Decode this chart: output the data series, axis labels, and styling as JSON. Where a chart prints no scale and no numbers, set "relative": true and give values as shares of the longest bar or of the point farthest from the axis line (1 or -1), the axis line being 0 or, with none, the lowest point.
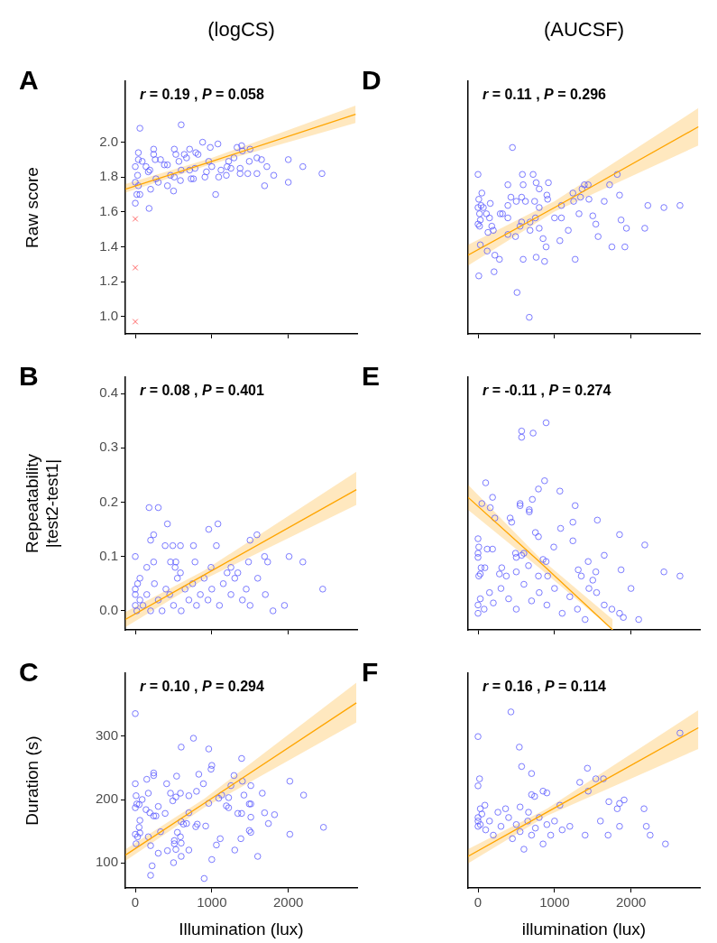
{
  "chart_data": [
    {
      "type": "scatter",
      "title": "A",
      "subtitle": "(logCS)",
      "ylabel": "Raw score",
      "annotations": [
        "r = 0.19 , P = 0.058"
      ],
      "xlim": [
        -130,
        2900
      ],
      "xticks": [
        0,
        1000,
        2000
      ],
      "ylim": [
        0.9,
        2.35
      ],
      "yticks": [
        {
          "value": 1,
          "label": "1.0"
        },
        1.2,
        1.4,
        1.6,
        1.8,
        {
          "value": 2,
          "label": "2.0"
        }
      ],
      "tick_labels": "y",
      "marker": "circle",
      "series": [
        {
          "color": "#5a5aff",
          "x": [
            60,
            600,
            0,
            180,
            40,
            40,
            0,
            30,
            0,
            40,
            20,
            60,
            90,
            140,
            170,
            190,
            200,
            240,
            240,
            260,
            270,
            300,
            330,
            380,
            420,
            420,
            460,
            500,
            510,
            510,
            530,
            570,
            590,
            600,
            640,
            670,
            710,
            710,
            730,
            760,
            790,
            820,
            780,
            880,
            910,
            930,
            960,
            980,
            1000,
            1050,
            1080,
            1090,
            1120,
            1190,
            1200,
            1220,
            1250,
            1290,
            1330,
            1370,
            1370,
            1390,
            1400,
            1470,
            1490,
            1500,
            1590,
            1590,
            1650,
            1690,
            1720,
            1810,
            2000,
            2000,
            2190,
            2440
          ],
          "values": [
            2.08,
            2.1,
            1.65,
            1.62,
            1.94,
            1.9,
            1.86,
            1.81,
            1.77,
            1.75,
            1.7,
            1.7,
            1.89,
            1.86,
            1.83,
            1.84,
            1.73,
            1.96,
            1.93,
            1.9,
            1.79,
            1.77,
            1.9,
            1.87,
            1.87,
            1.75,
            1.81,
            1.72,
            1.96,
            1.8,
            1.93,
            1.89,
            1.78,
            1.84,
            1.93,
            1.91,
            1.96,
            1.84,
            1.79,
            1.79,
            1.94,
            1.93,
            1.85,
            2.0,
            1.8,
            1.83,
            1.89,
            1.97,
            1.86,
            1.7,
            1.99,
            1.8,
            1.84,
            1.81,
            1.86,
            1.89,
            1.85,
            1.91,
            1.97,
            1.85,
            1.82,
            1.98,
            1.95,
            1.82,
            1.89,
            1.96,
            1.91,
            1.82,
            1.9,
            1.75,
            1.86,
            1.81,
            1.9,
            1.77,
            1.86,
            1.82
          ]
        },
        {
          "color": "#ff4040",
          "marker": "cross",
          "x": [
            0,
            0,
            0
          ],
          "values": [
            1.56,
            1.28,
            0.97
          ]
        },
        {
          "type": "line",
          "marker": "none",
          "color": "#ffa500",
          "x": [
            -130,
            1000,
            2880
          ],
          "values": [
            1.73,
            1.89,
            2.16
          ],
          "lower": [
            1.71,
            1.875,
            2.11
          ],
          "upper": [
            1.76,
            1.91,
            2.21
          ]
        }
      ]
    },
    {
      "type": "scatter",
      "title": "D",
      "subtitle": "(AUCSF)",
      "relative": true,
      "annotations": [
        "r = 0.11 , P = 0.296"
      ],
      "xlim": [
        -130,
        2900
      ],
      "xticks": [
        0,
        1000,
        2000
      ],
      "tick_labels": false,
      "marker": "circle",
      "series": [
        {
          "color": "#5a5aff",
          "x": [
            450,
            0,
            10,
            0,
            50,
            40,
            70,
            20,
            30,
            0,
            20,
            110,
            160,
            150,
            180,
            130,
            200,
            30,
            120,
            220,
            280,
            210,
            10,
            290,
            320,
            390,
            390,
            390,
            390,
            430,
            490,
            500,
            510,
            550,
            570,
            580,
            590,
            620,
            570,
            590,
            680,
            680,
            670,
            720,
            760,
            800,
            740,
            750,
            800,
            800,
            850,
            900,
            920,
            910,
            890,
            870,
            760,
            1000,
            1090,
            1090,
            1070,
            1180,
            1240,
            1250,
            1320,
            1340,
            1360,
            1390,
            1440,
            1450,
            1500,
            1540,
            1570,
            1270,
            1650,
            1720,
            1820,
            1850,
            1870,
            1940,
            1750,
            1920,
            2180,
            2220,
            2430,
            2640
          ],
          "values": [
            0.9,
            0.77,
            0.65,
            0.61,
            0.68,
            0.62,
            0.61,
            0.58,
            0.55,
            0.53,
            0.52,
            0.58,
            0.63,
            0.56,
            0.52,
            0.49,
            0.5,
            0.43,
            0.4,
            0.38,
            0.36,
            0.3,
            0.28,
            0.58,
            0.58,
            0.72,
            0.62,
            0.56,
            0.48,
            0.66,
            0.47,
            0.64,
            0.2,
            0.52,
            0.66,
            0.77,
            0.72,
            0.64,
            0.54,
            0.36,
            0.54,
            0.5,
            0.08,
            0.77,
            0.73,
            0.7,
            0.64,
            0.56,
            0.61,
            0.51,
            0.46,
            0.67,
            0.73,
            0.65,
            0.42,
            0.35,
            0.37,
            0.56,
            0.62,
            0.56,
            0.45,
            0.5,
            0.68,
            0.64,
            0.58,
            0.66,
            0.7,
            0.72,
            0.72,
            0.65,
            0.57,
            0.53,
            0.47,
            0.36,
            0.64,
            0.72,
            0.77,
            0.67,
            0.55,
            0.51,
            0.42,
            0.42,
            0.51,
            0.62,
            0.61,
            0.62
          ]
        },
        {
          "type": "line",
          "marker": "none",
          "color": "#ffa500",
          "x": [
            -130,
            1000,
            2880
          ],
          "values": [
            0.38,
            0.61,
            1.0
          ],
          "lower": [
            0.33,
            0.59,
            0.91
          ],
          "upper": [
            0.43,
            0.64,
            1.09
          ]
        }
      ]
    },
    {
      "type": "scatter",
      "title": "B",
      "ylabel": "Repeatability |test2-test1|",
      "annotations": [
        "r = 0.08 , P = 0.401"
      ],
      "xlim": [
        -130,
        2900
      ],
      "xticks": [
        0,
        1000,
        2000
      ],
      "ylim": [
        -0.035,
        0.43
      ],
      "yticks": [
        {
          "value": 0,
          "label": "0.0"
        },
        0.1,
        0.2,
        0.3,
        0.4
      ],
      "tick_labels": "y",
      "marker": "circle",
      "series": [
        {
          "color": "#5a5aff",
          "x": [
            180,
            300,
            420,
            240,
            200,
            960,
            1080,
            1590,
            1500,
            390,
            490,
            590,
            760,
            1060,
            0,
            240,
            150,
            460,
            530,
            520,
            780,
            990,
            1250,
            1480,
            1690,
            1730,
            2010,
            2190,
            590,
            1200,
            1340,
            60,
            0,
            0,
            0,
            20,
            30,
            60,
            100,
            150,
            200,
            250,
            300,
            350,
            400,
            450,
            500,
            550,
            600,
            650,
            700,
            750,
            800,
            850,
            900,
            950,
            1000,
            1100,
            1150,
            1250,
            1300,
            1400,
            1450,
            1500,
            1600,
            1700,
            1800,
            1950,
            2450
          ],
          "values": [
            0.19,
            0.19,
            0.16,
            0.14,
            0.13,
            0.15,
            0.16,
            0.14,
            0.13,
            0.12,
            0.12,
            0.12,
            0.12,
            0.12,
            0.1,
            0.09,
            0.08,
            0.09,
            0.09,
            0.08,
            0.09,
            0.08,
            0.08,
            0.09,
            0.1,
            0.09,
            0.1,
            0.09,
            0.07,
            0.07,
            0.07,
            0.06,
            0.01,
            0.03,
            0.04,
            0.0,
            0.05,
            0.02,
            0.01,
            0.03,
            0.0,
            0.05,
            0.02,
            0.0,
            0.04,
            0.03,
            0.01,
            0.06,
            0.0,
            0.04,
            0.02,
            0.05,
            0.01,
            0.03,
            0.06,
            0.02,
            0.04,
            0.01,
            0.05,
            0.03,
            0.06,
            0.02,
            0.04,
            0.01,
            0.06,
            0.03,
            0.0,
            0.01,
            0.04
          ]
        },
        {
          "type": "line",
          "marker": "none",
          "color": "#ffa500",
          "x": [
            -130,
            900,
            2890
          ],
          "values": [
            -0.016,
            0.066,
            0.223
          ],
          "lower": [
            -0.03,
            0.058,
            0.195
          ],
          "upper": [
            -0.002,
            0.074,
            0.256
          ]
        }
      ]
    },
    {
      "type": "scatter",
      "title": "E",
      "relative": true,
      "annotations": [
        "r = -0.11 , P = 0.274"
      ],
      "xlim": [
        -130,
        2900
      ],
      "xticks": [
        0,
        1000,
        2000
      ],
      "tick_labels": false,
      "marker": "circle",
      "series": [
        {
          "color": "#5a5aff",
          "x": [
            890,
            570,
            570,
            720,
            100,
            870,
            790,
            1070,
            190,
            50,
            160,
            550,
            550,
            710,
            670,
            670,
            1270,
            220,
            420,
            440,
            1560,
            1240,
            1080,
            750,
            790,
            1240,
            1850,
            2180,
            990,
            0,
            10,
            0,
            0,
            120,
            190,
            490,
            500,
            570,
            600,
            1650,
            850,
            890,
            1440,
            660,
            40,
            90,
            310,
            280,
            30,
            10,
            370,
            500,
            1310,
            1540,
            1870,
            2430,
            2640,
            790,
            910,
            1350,
            1500,
            0,
            0,
            30,
            80,
            150,
            200,
            300,
            400,
            500,
            600,
            700,
            800,
            900,
            1000,
            1100,
            1200,
            1300,
            1400,
            1450,
            1550,
            1650,
            1750,
            1850,
            2000,
            2100,
            1900
          ],
          "values": [
            1.0,
            0.96,
            0.93,
            0.95,
            0.71,
            0.72,
            0.68,
            0.67,
            0.64,
            0.61,
            0.59,
            0.61,
            0.6,
            0.63,
            0.58,
            0.57,
            0.6,
            0.54,
            0.54,
            0.52,
            0.53,
            0.52,
            0.49,
            0.47,
            0.45,
            0.43,
            0.46,
            0.41,
            0.4,
            0.44,
            0.4,
            0.37,
            0.35,
            0.39,
            0.39,
            0.37,
            0.35,
            0.36,
            0.37,
            0.36,
            0.34,
            0.33,
            0.33,
            0.31,
            0.3,
            0.3,
            0.3,
            0.27,
            0.27,
            0.26,
            0.26,
            0.28,
            0.29,
            0.28,
            0.29,
            0.28,
            0.26,
            0.26,
            0.26,
            0.26,
            0.24,
            0.12,
            0.08,
            0.15,
            0.1,
            0.18,
            0.13,
            0.2,
            0.15,
            0.1,
            0.22,
            0.14,
            0.18,
            0.12,
            0.2,
            0.08,
            0.16,
            0.1,
            0.05,
            0.2,
            0.18,
            0.12,
            0.1,
            0.08,
            0.2,
            0.05,
            0.06
          ]
        },
        {
          "type": "line",
          "marker": "none",
          "color": "#ffa500",
          "x": [
            -130,
            800,
            1760
          ],
          "values": [
            0.64,
            0.33,
            0
          ],
          "lower": [
            0.58,
            0.3,
            0
          ],
          "upper": [
            0.7,
            0.35,
            0.05
          ]
        }
      ]
    },
    {
      "type": "scatter",
      "title": "C",
      "ylabel": "Duration (s)",
      "xlabel": "Illumination (lux)",
      "annotations": [
        "r = 0.10 , P = 0.294"
      ],
      "xlim": [
        -130,
        2900
      ],
      "xticks": [
        0,
        1000,
        2000
      ],
      "ylim": [
        60,
        400
      ],
      "yticks": [
        100,
        200,
        300
      ],
      "marker": "circle",
      "series": [
        {
          "color": "#5a5aff",
          "x": [
            0,
            760,
            600,
            960,
            1390,
            1000,
            990,
            240,
            240,
            150,
            540,
            830,
            0,
            410,
            890,
            1290,
            1250,
            1400,
            1510,
            2020,
            10,
            170,
            460,
            590,
            700,
            800,
            1130,
            1220,
            1420,
            1660,
            2200,
            20,
            50,
            0,
            90,
            530,
            490,
            960,
            1090,
            1190,
            1220,
            1490,
            1510,
            300,
            140,
            190,
            240,
            270,
            390,
            1340,
            1390,
            1510,
            1690,
            1820,
            60,
            700,
            600,
            630,
            670,
            1740,
            50,
            60,
            810,
            790,
            920,
            2460,
            0,
            30,
            170,
            330,
            550,
            1490,
            1510,
            2020,
            1380,
            1110,
            200,
            510,
            590,
            510,
            600,
            10,
            1060,
            420,
            530,
            900,
            200,
            220,
            500,
            600,
            700,
            1000,
            1600,
            1300,
            300
          ],
          "values": [
            336,
            297,
            283,
            280,
            265,
            254,
            248,
            242,
            238,
            232,
            237,
            240,
            225,
            225,
            225,
            238,
            222,
            229,
            222,
            229,
            206,
            210,
            210,
            210,
            206,
            213,
            207,
            203,
            207,
            210,
            207,
            193,
            192,
            187,
            200,
            204,
            198,
            194,
            202,
            190,
            187,
            193,
            193,
            189,
            184,
            179,
            174,
            174,
            178,
            178,
            178,
            172,
            179,
            176,
            167,
            179,
            165,
            161,
            162,
            162,
            156,
            147,
            161,
            157,
            158,
            156,
            145,
            141,
            141,
            149,
            148,
            151,
            148,
            145,
            138,
            138,
            127,
            135,
            141,
            130,
            131,
            130,
            128,
            119,
            121,
            75,
            80,
            95,
            100,
            110,
            120,
            105,
            110,
            120,
            115
          ]
        },
        {
          "type": "line",
          "marker": "none",
          "color": "#ffa500",
          "x": [
            -130,
            900,
            2890
          ],
          "values": [
            112,
            194,
            353
          ],
          "lower": [
            103,
            187,
            322
          ],
          "upper": [
            121,
            201,
            385
          ]
        }
      ]
    },
    {
      "type": "scatter",
      "title": "F",
      "relative": true,
      "xlabel": "illumination (lux)",
      "annotations": [
        "r = 0.16 , P = 0.114"
      ],
      "xlim": [
        -130,
        2900
      ],
      "xticks": [
        0,
        1000,
        2000
      ],
      "tick_labels": "x",
      "marker": "circle",
      "series": [
        {
          "color": "#5a5aff",
          "x": [
            430,
            0,
            2640,
            540,
            570,
            20,
            0,
            700,
            700,
            740,
            850,
            900,
            1330,
            1430,
            1440,
            1540,
            1640,
            1710,
            1820,
            1850,
            1910,
            2170,
            1070,
            90,
            360,
            550,
            260,
            30,
            660,
            0,
            0,
            0,
            30,
            50,
            100,
            150,
            200,
            300,
            400,
            450,
            500,
            550,
            600,
            650,
            700,
            750,
            800,
            850,
            900,
            950,
            1000,
            1100,
            1200,
            1400,
            1600,
            1700,
            1850,
            2200,
            2450,
            2250
          ],
          "values": [
            1.0,
            0.86,
            0.88,
            0.8,
            0.69,
            0.62,
            0.58,
            0.65,
            0.53,
            0.52,
            0.55,
            0.54,
            0.6,
            0.68,
            0.55,
            0.62,
            0.62,
            0.49,
            0.45,
            0.48,
            0.5,
            0.45,
            0.47,
            0.47,
            0.45,
            0.46,
            0.43,
            0.45,
            0.43,
            0.4,
            0.38,
            0.35,
            0.36,
            0.42,
            0.33,
            0.38,
            0.3,
            0.35,
            0.4,
            0.28,
            0.36,
            0.32,
            0.22,
            0.38,
            0.3,
            0.34,
            0.4,
            0.25,
            0.36,
            0.3,
            0.38,
            0.33,
            0.35,
            0.3,
            0.38,
            0.3,
            0.35,
            0.35,
            0.25,
            0.3
          ]
        },
        {
          "type": "line",
          "marker": "none",
          "color": "#ffa500",
          "x": [
            -130,
            900,
            2880
          ],
          "values": [
            0.18,
            0.43,
            0.91
          ],
          "lower": [
            0.14,
            0.41,
            0.79
          ],
          "upper": [
            0.22,
            0.45,
            1.01
          ]
        }
      ]
    }
  ]
}
